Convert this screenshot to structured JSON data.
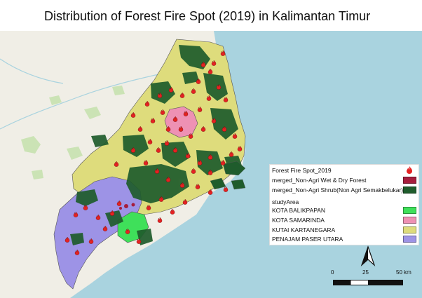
{
  "title": "Distribution of Forest Fire Spot (2019) in Kalimantan Timur",
  "legend": {
    "fire_label": "Forest Fire Spot_2019",
    "fire_icon": "flame-icon",
    "forest_label": "merged_Non-Agri Wet & Dry Forest",
    "shrub_label": "merged_Non-Agri Shrub(Non Agri Semakbelukar)",
    "study_area_label": "studyArea",
    "areas": [
      {
        "label": "KOTA BALIKPAPAN",
        "color": "#3fe05a"
      },
      {
        "label": "KOTA SAMARINDA",
        "color": "#ee91b4"
      },
      {
        "label": "KUTAI KARTANEGARA",
        "color": "#dedc7c"
      },
      {
        "label": "PENAJAM PASER UTARA",
        "color": "#9d93e6"
      }
    ],
    "forest_color": "#a61d3d",
    "shrub_color": "#1f5c2c"
  },
  "scale": {
    "tick_0": "0",
    "tick_1": "25",
    "tick_2": "50 km"
  },
  "colors": {
    "sea": "#a9d3df",
    "land": "#f0eee6",
    "fire": "#e52222"
  }
}
